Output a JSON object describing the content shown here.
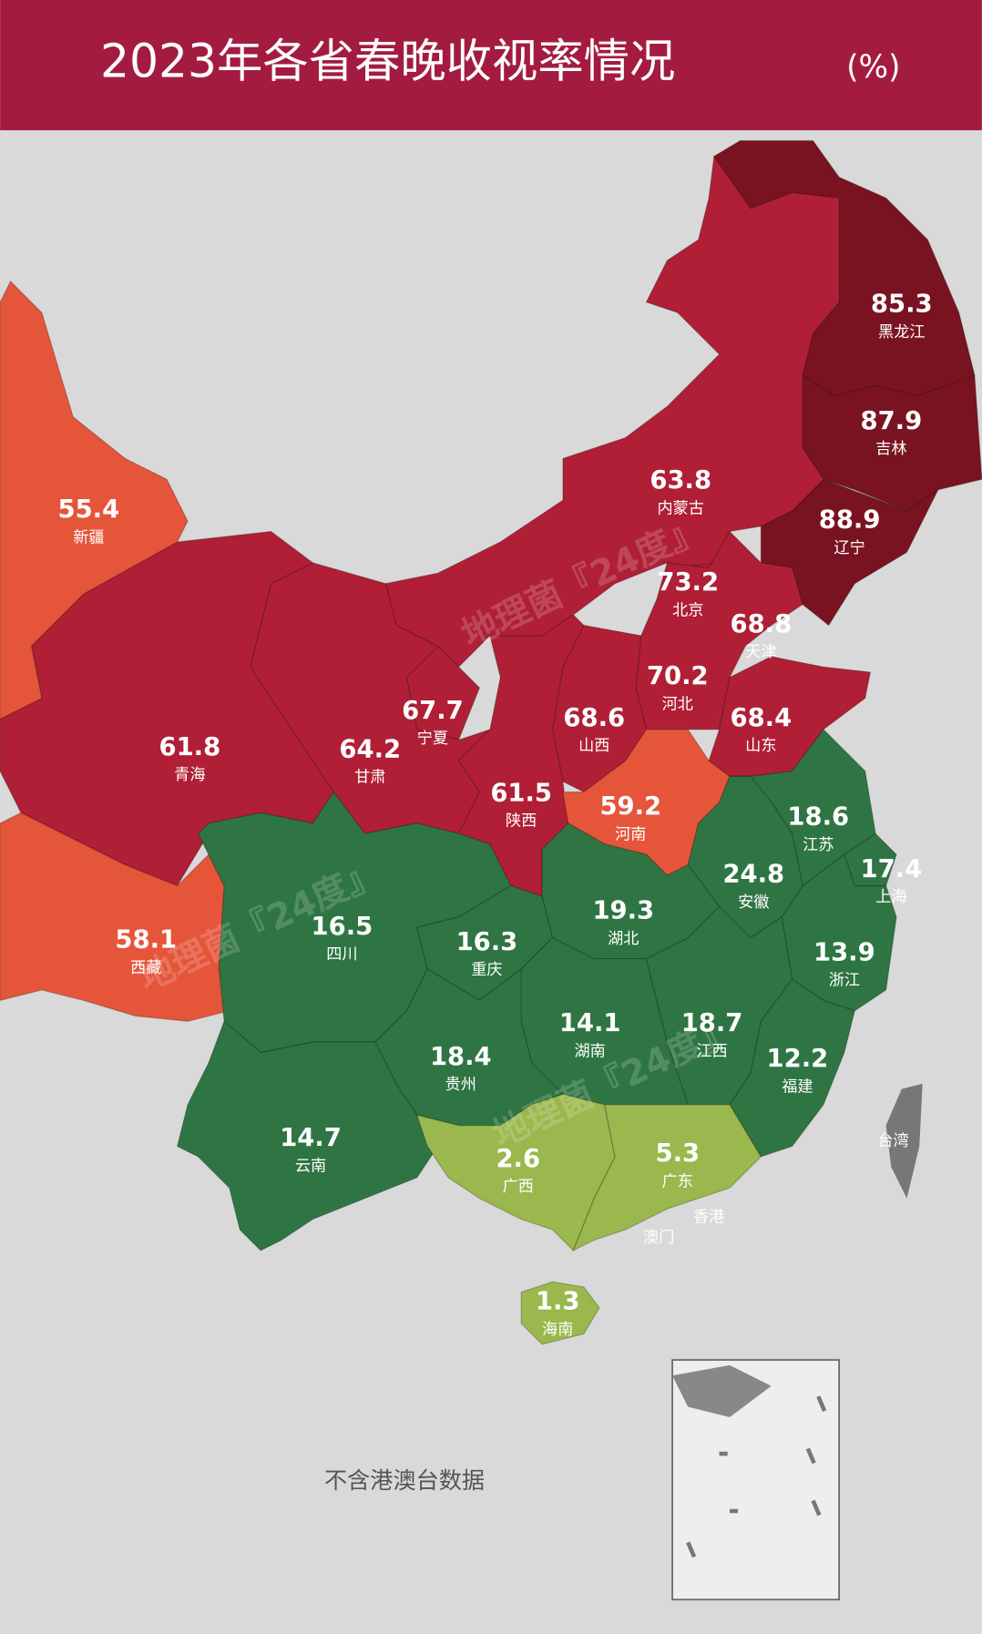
{
  "header": {
    "title": "2023年各省春晚收视率情况",
    "unit": "(%)"
  },
  "regions": [
    {
      "name": "黑龙江",
      "value": 85.3,
      "color": "#7a1321"
    },
    {
      "name": "吉林",
      "value": 87.9,
      "color": "#7a1321"
    },
    {
      "name": "辽宁",
      "value": 88.9,
      "color": "#7a1321"
    },
    {
      "name": "内蒙古",
      "value": 63.8,
      "color": "#b01f36"
    },
    {
      "name": "北京",
      "value": 73.2,
      "color": "#b01f36"
    },
    {
      "name": "天津",
      "value": 68.8,
      "color": "#b01f36"
    },
    {
      "name": "河北",
      "value": 70.2,
      "color": "#b01f36"
    },
    {
      "name": "山西",
      "value": 68.6,
      "color": "#b01f36"
    },
    {
      "name": "山东",
      "value": 68.4,
      "color": "#b01f36"
    },
    {
      "name": "宁夏",
      "value": 67.7,
      "color": "#b01f36"
    },
    {
      "name": "甘肃",
      "value": 64.2,
      "color": "#b01f36"
    },
    {
      "name": "青海",
      "value": 61.8,
      "color": "#b01f36"
    },
    {
      "name": "新疆",
      "value": 55.4,
      "color": "#e5553a"
    },
    {
      "name": "陕西",
      "value": 61.5,
      "color": "#b01f36"
    },
    {
      "name": "河南",
      "value": 59.2,
      "color": "#e5553a"
    },
    {
      "name": "江苏",
      "value": 18.6,
      "color": "#2e7543"
    },
    {
      "name": "上海",
      "value": 17.4,
      "color": "#2e7543"
    },
    {
      "name": "安徽",
      "value": 24.8,
      "color": "#2e7543"
    },
    {
      "name": "湖北",
      "value": 19.3,
      "color": "#2e7543"
    },
    {
      "name": "西藏",
      "value": 58.1,
      "color": "#e5553a"
    },
    {
      "name": "四川",
      "value": 16.5,
      "color": "#2e7543"
    },
    {
      "name": "重庆",
      "value": 16.3,
      "color": "#2e7543"
    },
    {
      "name": "浙江",
      "value": 13.9,
      "color": "#2e7543"
    },
    {
      "name": "湖南",
      "value": 14.1,
      "color": "#2e7543"
    },
    {
      "name": "江西",
      "value": 18.7,
      "color": "#2e7543"
    },
    {
      "name": "福建",
      "value": 12.2,
      "color": "#2e7543"
    },
    {
      "name": "贵州",
      "value": 18.4,
      "color": "#2e7543"
    },
    {
      "name": "云南",
      "value": 14.7,
      "color": "#2e7543"
    },
    {
      "name": "广西",
      "value": 2.6,
      "color": "#9ab84d"
    },
    {
      "name": "广东",
      "value": 5.3,
      "color": "#9ab84d"
    },
    {
      "name": "海南",
      "value": 1.3,
      "color": "#9ab84d"
    }
  ],
  "other_labels": {
    "taiwan": "台湾",
    "hongkong": "香港",
    "macau": "澳门"
  },
  "note": "不含港澳台数据",
  "watermark": "地理菌『24度』"
}
